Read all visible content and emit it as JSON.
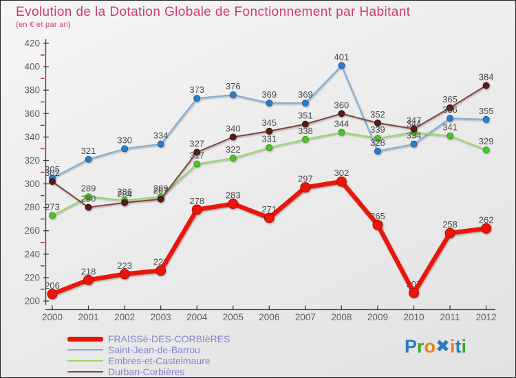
{
  "title": "Evolution de la Dotation Globale de Fonctionnement par Habitant",
  "subtitle": "(en € et par an)",
  "chart_data": {
    "type": "line",
    "title": "Evolution de la Dotation Globale de Fonctionnement par Habitant",
    "subtitle": "(en € et par an)",
    "x": [
      2000,
      2001,
      2002,
      2003,
      2004,
      2005,
      2006,
      2007,
      2008,
      2009,
      2010,
      2011,
      2012
    ],
    "series": [
      {
        "name": "FRAISSé-DES-CORBIèRES",
        "values": [
          206,
          218,
          223,
          226,
          278,
          283,
          271,
          297,
          302,
          265,
          207,
          258,
          262
        ],
        "line_color": "#e8130b",
        "dot_color": "#e8130b",
        "dot_stroke": "#b30d06",
        "line_width": 6.5,
        "dot_radius": 7,
        "emphasized": true
      },
      {
        "name": "Saint-Jean-de-Barrou",
        "values": [
          305,
          321,
          330,
          334,
          373,
          376,
          369,
          369,
          401,
          328,
          334,
          356,
          355
        ],
        "line_color": "#7dadd6",
        "dot_color": "#2e7cc3",
        "dot_stroke": "#1f5e9e",
        "line_width": 2,
        "dot_radius": 4.5,
        "emphasized": false
      },
      {
        "name": "Embres-et-Castelmaure",
        "values": [
          273,
          289,
          286,
          289,
          317,
          322,
          331,
          338,
          344,
          339,
          344,
          341,
          329
        ],
        "line_color": "#94d966",
        "dot_color": "#4cc32b",
        "dot_stroke": "#3a9a1f",
        "line_width": 2,
        "dot_radius": 4.5,
        "emphasized": false
      },
      {
        "name": "Durban-Corbières",
        "values": [
          302,
          280,
          284,
          287,
          327,
          340,
          345,
          351,
          360,
          352,
          347,
          365,
          384
        ],
        "line_color": "#84423c",
        "dot_color": "#571e18",
        "dot_stroke": "#3f1511",
        "line_width": 2,
        "dot_radius": 4.5,
        "emphasized": false
      }
    ],
    "ylim": [
      200,
      420
    ],
    "ytick_step": 20,
    "minor_tick_step": 10,
    "grid": false,
    "legend_position": "bottom-left",
    "xlabel": "",
    "ylabel": ""
  },
  "colors": {
    "title": "#d23c64",
    "axis": "#3c3c3c",
    "tick_label": "#5f5f5f",
    "value_label": "#4a4a4a",
    "minor_tick": "#cc1111",
    "legend_text": "#8282cd"
  },
  "logo": {
    "text": "Proxiti",
    "letters": [
      {
        "ch": "P",
        "color": "#2e7ac2"
      },
      {
        "ch": "r",
        "color": "#3aa935"
      },
      {
        "ch": "o",
        "color": "#ef8018"
      },
      {
        "ch": "✖",
        "color": "#2e7ac2"
      },
      {
        "ch": "i",
        "color": "#ef8018"
      },
      {
        "ch": "t",
        "color": "#2e7ac2"
      },
      {
        "ch": "i",
        "color": "#3aa935"
      }
    ]
  }
}
